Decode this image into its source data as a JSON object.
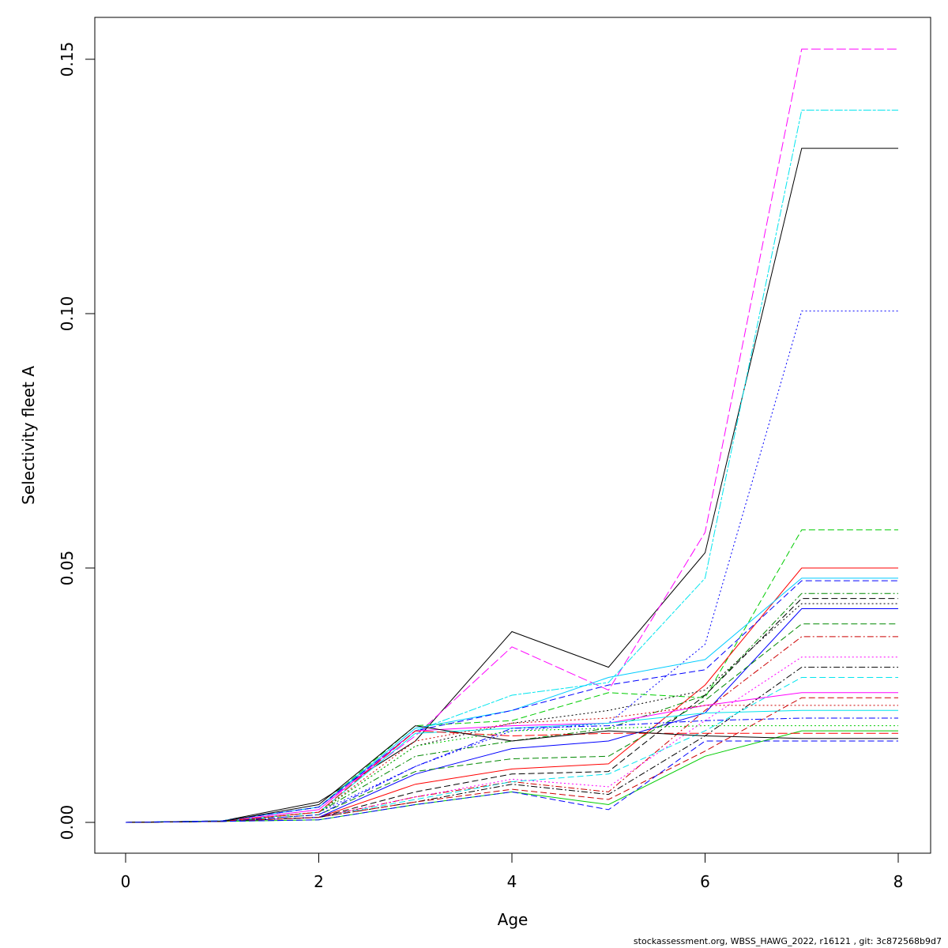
{
  "chart_data": {
    "type": "line",
    "xlabel": "Age",
    "ylabel": "Selectivity fleet A",
    "xlim": [
      0,
      8
    ],
    "ylim": [
      0,
      0.15
    ],
    "x_ticks": [
      "0",
      "2",
      "4",
      "6",
      "8"
    ],
    "y_ticks": [
      "0.00",
      "0.05",
      "0.10",
      "0.15"
    ],
    "x": [
      0,
      1,
      2,
      3,
      4,
      5,
      6,
      7,
      8
    ],
    "grid": false,
    "legend": "none",
    "series": [
      {
        "color": "#000000",
        "dash": "solid",
        "values": [
          0,
          0.0003,
          0.004,
          0.016,
          0.0375,
          0.0305,
          0.053,
          0.1325,
          0.1325
        ]
      },
      {
        "color": "#ff00ff",
        "dash": "longdash",
        "values": [
          0,
          0.0003,
          0.003,
          0.017,
          0.0345,
          0.026,
          0.057,
          0.152,
          0.152
        ]
      },
      {
        "color": "#00e5ee",
        "dash": "twodash",
        "values": [
          0,
          0.0003,
          0.003,
          0.018,
          0.025,
          0.0275,
          0.048,
          0.14,
          0.14
        ]
      },
      {
        "color": "#0000ff",
        "dash": "dotted",
        "values": [
          0,
          0.0003,
          0.002,
          0.011,
          0.018,
          0.0195,
          0.035,
          0.1005,
          0.1005
        ]
      },
      {
        "color": "#00cc00",
        "dash": "dashed",
        "values": [
          0,
          0.0003,
          0.003,
          0.019,
          0.02,
          0.0255,
          0.0245,
          0.0575,
          0.0575
        ]
      },
      {
        "color": "#ff0000",
        "dash": "solid",
        "values": [
          0,
          0.0002,
          0.001,
          0.0075,
          0.0105,
          0.0115,
          0.027,
          0.05,
          0.05
        ]
      },
      {
        "color": "#00ccff",
        "dash": "solid",
        "values": [
          0,
          0.0003,
          0.003,
          0.0185,
          0.022,
          0.0285,
          0.032,
          0.048,
          0.048
        ]
      },
      {
        "color": "#0000ff",
        "dash": "dashed",
        "values": [
          0,
          0.0003,
          0.003,
          0.018,
          0.022,
          0.027,
          0.03,
          0.0475,
          0.0475
        ]
      },
      {
        "color": "#008800",
        "dash": "dotdash",
        "values": [
          0,
          0.0002,
          0.002,
          0.013,
          0.016,
          0.0185,
          0.025,
          0.045,
          0.045
        ]
      },
      {
        "color": "#000000",
        "dash": "dashed",
        "values": [
          0,
          0.0002,
          0.001,
          0.006,
          0.0095,
          0.01,
          0.025,
          0.044,
          0.044
        ]
      },
      {
        "color": "#000000",
        "dash": "dotted",
        "values": [
          0,
          0.0002,
          0.002,
          0.015,
          0.0195,
          0.022,
          0.026,
          0.043,
          0.043
        ]
      },
      {
        "color": "#0000ff",
        "dash": "solid",
        "values": [
          0,
          0.0002,
          0.001,
          0.0095,
          0.0145,
          0.016,
          0.0215,
          0.042,
          0.042
        ]
      },
      {
        "color": "#008800",
        "dash": "dashed",
        "values": [
          0,
          0.0002,
          0.0015,
          0.01,
          0.0125,
          0.013,
          0.024,
          0.039,
          0.039
        ]
      },
      {
        "color": "#cc0000",
        "dash": "dotdash",
        "values": [
          0,
          0.0002,
          0.001,
          0.005,
          0.008,
          0.006,
          0.022,
          0.0365,
          0.0365
        ]
      },
      {
        "color": "#ff00ff",
        "dash": "dotted",
        "values": [
          0,
          0.0002,
          0.001,
          0.005,
          0.0085,
          0.007,
          0.02,
          0.0325,
          0.0325
        ]
      },
      {
        "color": "#000000",
        "dash": "dotdash",
        "values": [
          0,
          0.0002,
          0.001,
          0.004,
          0.0075,
          0.0055,
          0.017,
          0.0305,
          0.0305
        ]
      },
      {
        "color": "#00e5ee",
        "dash": "dashed",
        "values": [
          0,
          0.0002,
          0.001,
          0.0045,
          0.008,
          0.0095,
          0.018,
          0.0285,
          0.0285
        ]
      },
      {
        "color": "#ff00ff",
        "dash": "solid",
        "values": [
          0,
          0.0002,
          0.0025,
          0.018,
          0.019,
          0.0195,
          0.023,
          0.0255,
          0.0255
        ]
      },
      {
        "color": "#cc0000",
        "dash": "dashed",
        "values": [
          0,
          0.0002,
          0.001,
          0.004,
          0.0065,
          0.0045,
          0.014,
          0.0245,
          0.0245
        ]
      },
      {
        "color": "#cc0000",
        "dash": "dotted",
        "values": [
          0,
          0.0002,
          0.002,
          0.016,
          0.0195,
          0.0205,
          0.023,
          0.023,
          0.023
        ]
      },
      {
        "color": "#00e5ee",
        "dash": "solid",
        "values": [
          0,
          0.0002,
          0.002,
          0.0175,
          0.0185,
          0.0195,
          0.0215,
          0.022,
          0.022
        ]
      },
      {
        "color": "#0000ff",
        "dash": "dotdash",
        "values": [
          0,
          0.0002,
          0.0015,
          0.011,
          0.0185,
          0.019,
          0.02,
          0.0205,
          0.0205
        ]
      },
      {
        "color": "#00cc00",
        "dash": "dotted",
        "values": [
          0,
          0.0002,
          0.002,
          0.015,
          0.018,
          0.0185,
          0.019,
          0.019,
          0.019
        ]
      },
      {
        "color": "#00cc00",
        "dash": "solid",
        "values": [
          0,
          0.0002,
          0.0005,
          0.0035,
          0.006,
          0.0035,
          0.013,
          0.018,
          0.018
        ]
      },
      {
        "color": "#ff0000",
        "dash": "longdash",
        "values": [
          0,
          0.0002,
          0.002,
          0.018,
          0.017,
          0.0175,
          0.0175,
          0.0175,
          0.0175
        ]
      },
      {
        "color": "#000000",
        "dash": "solid",
        "values": [
          0,
          0.0002,
          0.0035,
          0.019,
          0.016,
          0.018,
          0.017,
          0.0165,
          0.0165
        ]
      },
      {
        "color": "#0000ff",
        "dash": "dashed",
        "values": [
          0,
          0.0002,
          0.0005,
          0.0035,
          0.006,
          0.0025,
          0.016,
          0.016,
          0.016
        ]
      }
    ]
  },
  "footer": "stockassessment.org, WBSS_HAWG_2022, r16121 , git: 3c872568b9d7"
}
